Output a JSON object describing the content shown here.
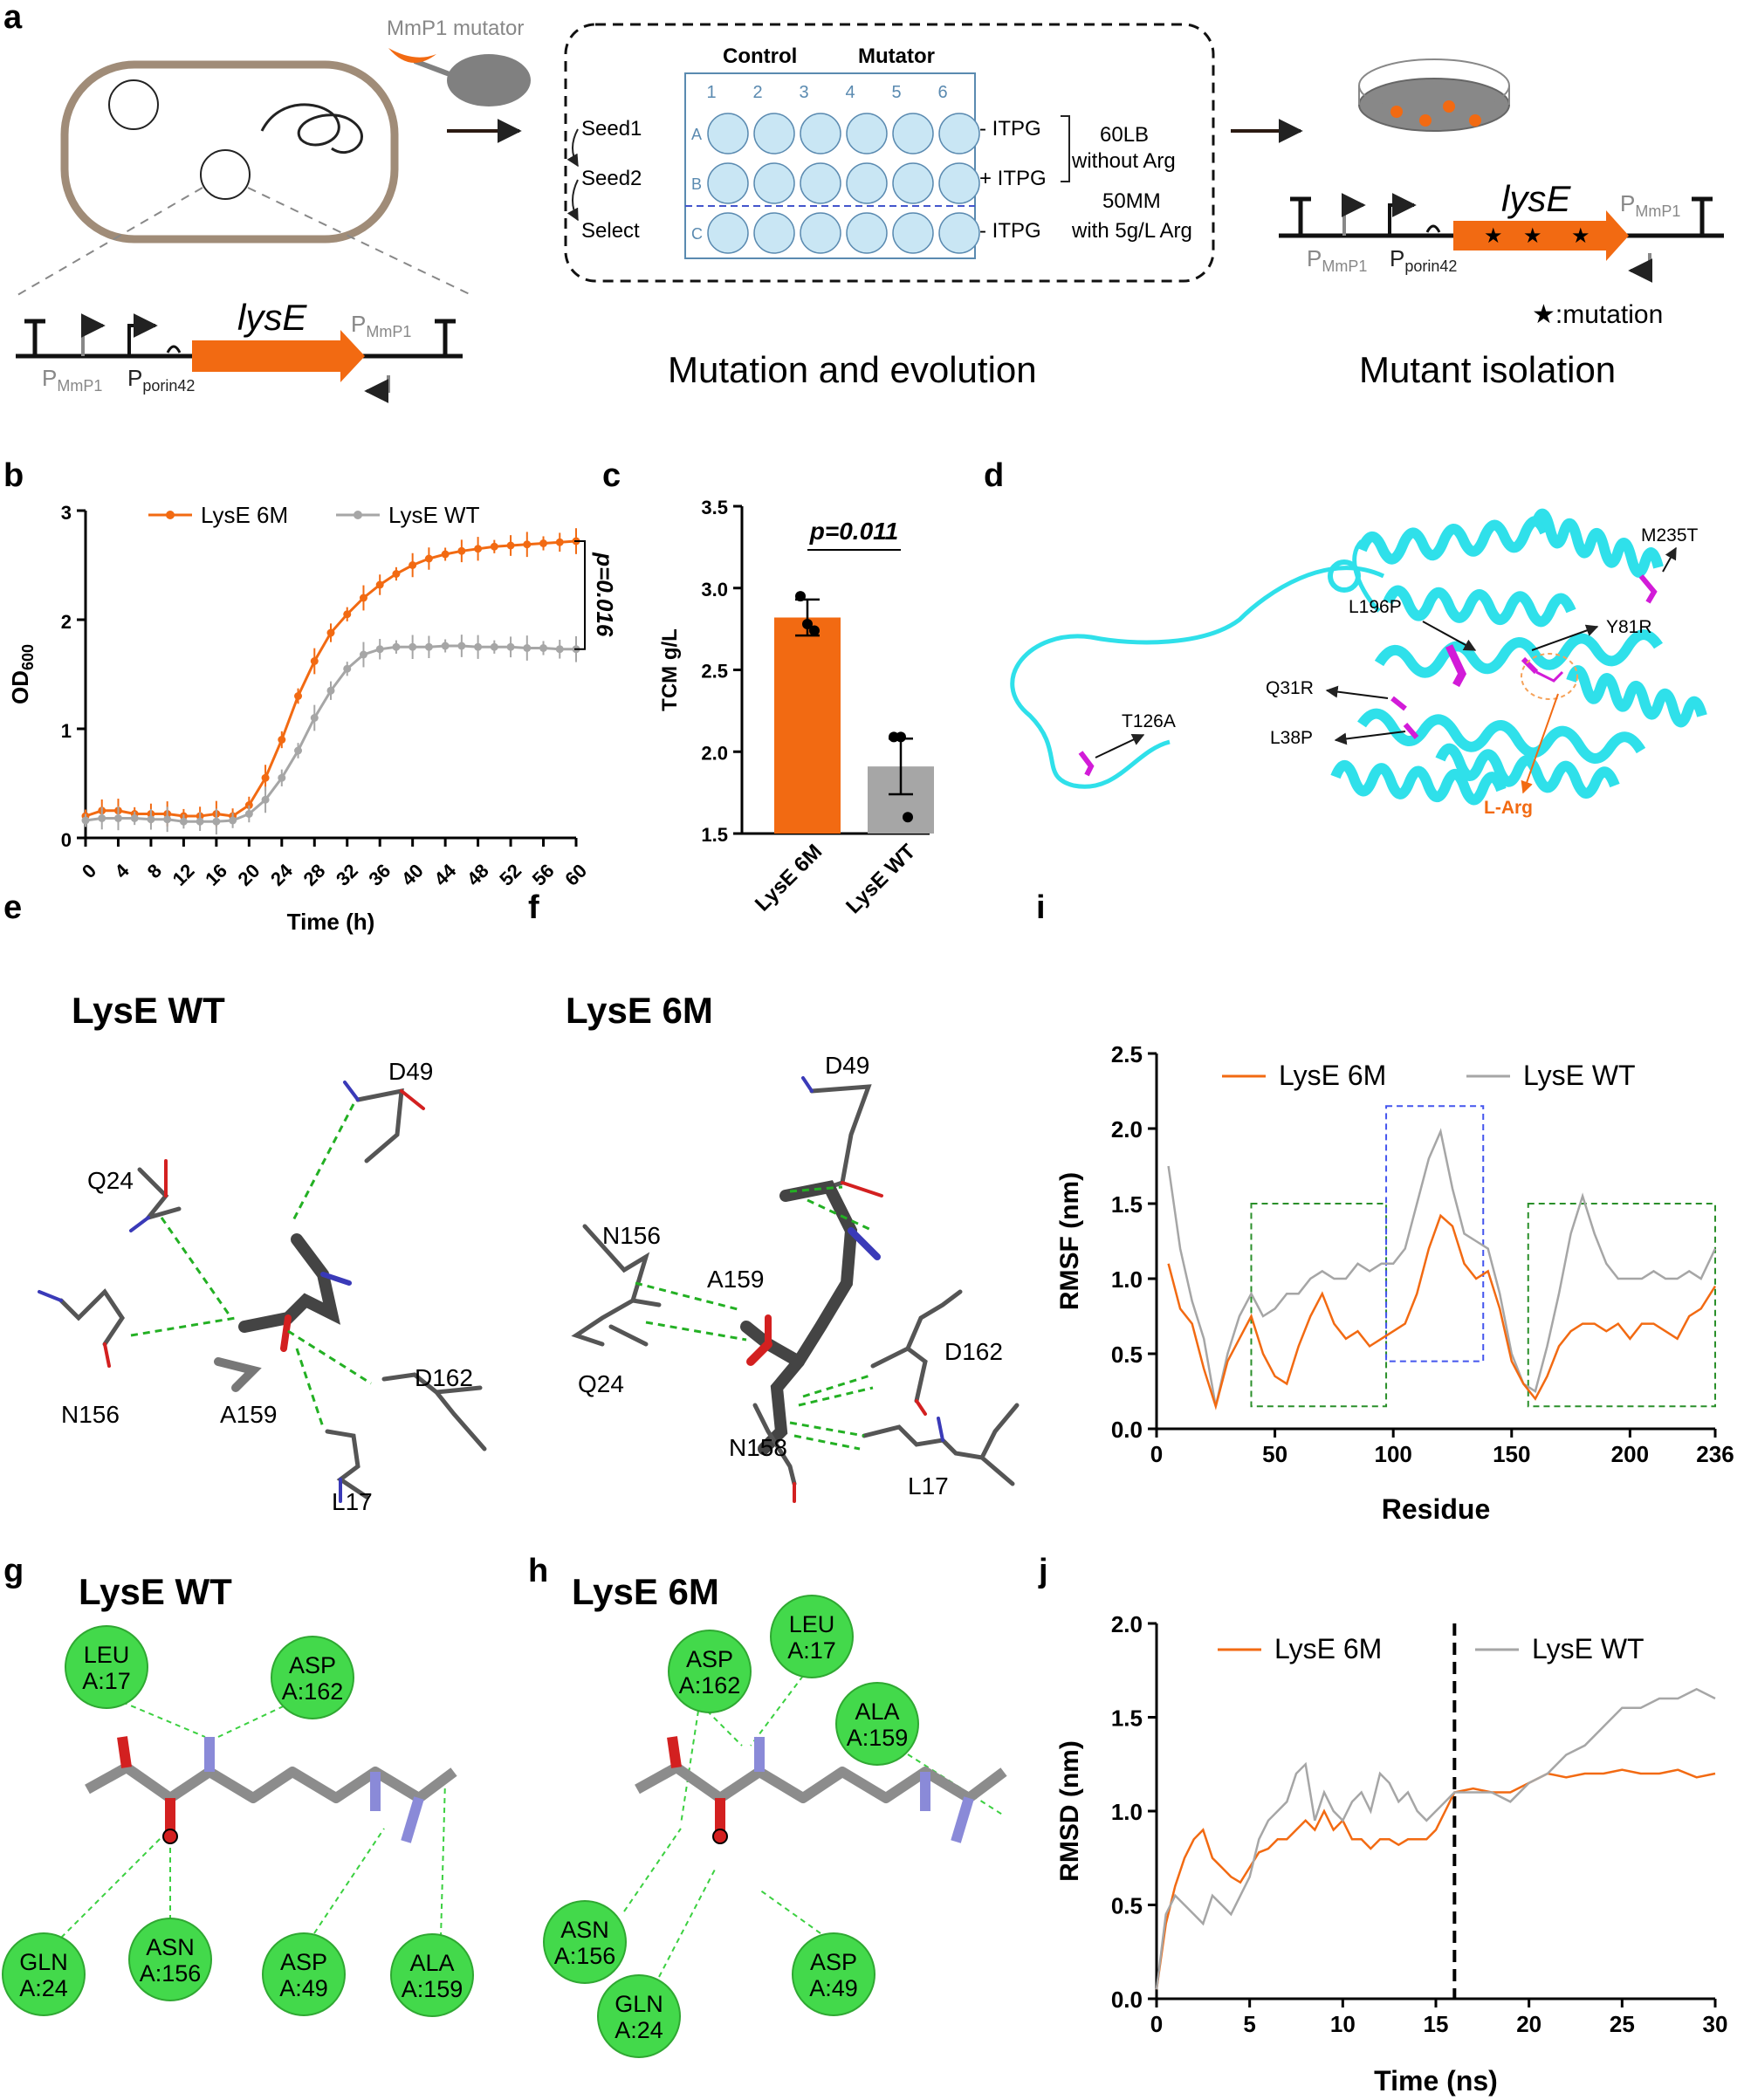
{
  "panels": {
    "a": {
      "letter": "a",
      "mutator_label": "MmP1 mutator",
      "cassette": {
        "gene": "lysE",
        "p1_main": "P",
        "p1_sub": "MmP1",
        "p2_main": "P",
        "p2_sub": "porin42",
        "p3_main": "P",
        "p3_sub": "MmP1"
      },
      "plate": {
        "control": "Control",
        "mutator": "Mutator",
        "cols": [
          "1",
          "2",
          "3",
          "4",
          "5",
          "6"
        ],
        "rows": [
          "A",
          "B",
          "C"
        ],
        "left_labels": [
          "Seed1",
          "Seed2",
          "Select"
        ],
        "right_labels": [
          "- ITPG",
          "+ ITPG",
          "- ITPG"
        ],
        "media_1a": "60LB",
        "media_1b": "without Arg",
        "media_2a": "50MM",
        "media_2b": "with 5g/L Arg"
      },
      "caption_mid": "Mutation and evolution",
      "caption_right": "Mutant isolation",
      "mutation_legend": "★:mutation"
    },
    "b": {
      "letter": "b",
      "pvalue": "p=0.016"
    },
    "c": {
      "letter": "c",
      "pvalue": "p=0.011"
    },
    "d": {
      "letter": "d",
      "labels": [
        "M235T",
        "L196P",
        "Y81R",
        "Q31R",
        "L38P",
        "T126A"
      ],
      "ligand": "L-Arg"
    },
    "e": {
      "letter": "e",
      "title": "LysE WT",
      "residues": [
        "D49",
        "Q24",
        "N156",
        "A159",
        "D162",
        "L17"
      ]
    },
    "f": {
      "letter": "f",
      "title": "LysE 6M",
      "residues": [
        "D49",
        "N156",
        "A159",
        "Q24",
        "D162",
        "N158",
        "L17"
      ]
    },
    "g": {
      "letter": "g",
      "title": "LysE WT",
      "residues": [
        {
          "l1": "LEU",
          "l2": "A:17"
        },
        {
          "l1": "ASP",
          "l2": "A:162"
        },
        {
          "l1": "GLN",
          "l2": "A:24"
        },
        {
          "l1": "ASN",
          "l2": "A:156"
        },
        {
          "l1": "ASP",
          "l2": "A:49"
        },
        {
          "l1": "ALA",
          "l2": "A:159"
        }
      ]
    },
    "h": {
      "letter": "h",
      "title": "LysE 6M",
      "residues": [
        {
          "l1": "LEU",
          "l2": "A:17"
        },
        {
          "l1": "ASP",
          "l2": "A:162"
        },
        {
          "l1": "ALA",
          "l2": "A:159"
        },
        {
          "l1": "ASN",
          "l2": "A:156"
        },
        {
          "l1": "GLN",
          "l2": "A:24"
        },
        {
          "l1": "ASP",
          "l2": "A:49"
        }
      ]
    },
    "i": {
      "letter": "i"
    },
    "j": {
      "letter": "j"
    }
  },
  "colors": {
    "orange": "#f26a12",
    "gray": "#a6a6a6",
    "cyan": "#2fe0ea",
    "magenta": "#d21bd8",
    "green": "#43d94b",
    "plate_fill": "#c9e6f4"
  },
  "chart_data": [
    {
      "id": "b",
      "type": "line",
      "xlabel": "Time (h)",
      "ylabel": "OD600",
      "xlim": [
        0,
        60
      ],
      "ylim": [
        0,
        3
      ],
      "xticks": [
        0,
        4,
        8,
        12,
        16,
        20,
        24,
        28,
        32,
        36,
        40,
        44,
        48,
        52,
        56,
        60
      ],
      "yticks": [
        0,
        1,
        2,
        3
      ],
      "x": [
        0,
        2,
        4,
        6,
        8,
        10,
        12,
        14,
        16,
        18,
        20,
        22,
        24,
        26,
        28,
        30,
        32,
        34,
        36,
        38,
        40,
        42,
        44,
        46,
        48,
        50,
        52,
        54,
        56,
        58,
        60
      ],
      "series": [
        {
          "name": "LysE 6M",
          "values": [
            0.2,
            0.25,
            0.25,
            0.22,
            0.22,
            0.22,
            0.2,
            0.2,
            0.22,
            0.2,
            0.3,
            0.55,
            0.9,
            1.3,
            1.62,
            1.88,
            2.05,
            2.2,
            2.32,
            2.42,
            2.5,
            2.56,
            2.6,
            2.63,
            2.65,
            2.67,
            2.68,
            2.69,
            2.7,
            2.71,
            2.72
          ]
        },
        {
          "name": "LysE WT",
          "values": [
            0.16,
            0.18,
            0.18,
            0.18,
            0.17,
            0.17,
            0.15,
            0.15,
            0.15,
            0.16,
            0.22,
            0.35,
            0.55,
            0.8,
            1.1,
            1.35,
            1.55,
            1.68,
            1.73,
            1.75,
            1.75,
            1.75,
            1.76,
            1.76,
            1.75,
            1.75,
            1.75,
            1.74,
            1.74,
            1.73,
            1.73
          ]
        }
      ],
      "legend": "top"
    },
    {
      "id": "c",
      "type": "bar",
      "categories": [
        "LysE 6M",
        "LysE WT"
      ],
      "values": [
        2.82,
        1.91
      ],
      "errors": [
        0.11,
        0.17
      ],
      "points": [
        [
          2.95,
          2.78,
          2.74
        ],
        [
          2.09,
          2.09,
          1.6
        ]
      ],
      "ylabel": "TCM g/L",
      "ylim": [
        1.5,
        3.5
      ],
      "yticks": [
        1.5,
        2.0,
        2.5,
        3.0,
        3.5
      ]
    },
    {
      "id": "i",
      "type": "line",
      "xlabel": "Residue",
      "ylabel": "RMSF (nm)",
      "xlim": [
        0,
        236
      ],
      "ylim": [
        0,
        2.5
      ],
      "xticks": [
        0,
        50,
        100,
        150,
        200,
        236
      ],
      "yticks": [
        0.0,
        0.5,
        1.0,
        1.5,
        2.0,
        2.5
      ],
      "x": [
        5,
        10,
        15,
        20,
        25,
        30,
        35,
        40,
        45,
        50,
        55,
        60,
        65,
        70,
        75,
        80,
        85,
        90,
        95,
        100,
        105,
        110,
        115,
        120,
        125,
        130,
        135,
        140,
        145,
        150,
        155,
        160,
        165,
        170,
        175,
        180,
        185,
        190,
        195,
        200,
        205,
        210,
        215,
        220,
        225,
        230,
        236
      ],
      "series": [
        {
          "name": "LysE 6M",
          "values": [
            1.1,
            0.8,
            0.7,
            0.4,
            0.15,
            0.45,
            0.6,
            0.75,
            0.5,
            0.35,
            0.3,
            0.55,
            0.75,
            0.9,
            0.7,
            0.6,
            0.65,
            0.55,
            0.6,
            0.65,
            0.7,
            0.9,
            1.2,
            1.42,
            1.35,
            1.1,
            1.0,
            1.05,
            0.8,
            0.45,
            0.3,
            0.2,
            0.35,
            0.55,
            0.65,
            0.7,
            0.7,
            0.65,
            0.7,
            0.6,
            0.7,
            0.7,
            0.65,
            0.6,
            0.75,
            0.8,
            0.95
          ]
        },
        {
          "name": "LysE WT",
          "values": [
            1.75,
            1.2,
            0.85,
            0.6,
            0.15,
            0.5,
            0.75,
            0.9,
            0.75,
            0.8,
            0.9,
            0.9,
            1.0,
            1.05,
            1.0,
            1.0,
            1.1,
            1.05,
            1.1,
            1.1,
            1.2,
            1.5,
            1.8,
            1.98,
            1.6,
            1.3,
            1.25,
            1.2,
            0.9,
            0.5,
            0.3,
            0.25,
            0.55,
            0.9,
            1.3,
            1.55,
            1.3,
            1.1,
            1.0,
            1.0,
            1.0,
            1.05,
            1.0,
            1.0,
            1.05,
            1.0,
            1.2
          ]
        }
      ],
      "legend": "top"
    },
    {
      "id": "j",
      "type": "line",
      "xlabel": "Time (ns)",
      "ylabel": "RMSD (nm)",
      "xlim": [
        0,
        30
      ],
      "ylim": [
        0,
        2.0
      ],
      "xticks": [
        0,
        5,
        10,
        15,
        20,
        25,
        30
      ],
      "yticks": [
        0.0,
        0.5,
        1.0,
        1.5,
        2.0
      ],
      "x": [
        0,
        0.5,
        1,
        1.5,
        2,
        2.5,
        3,
        3.5,
        4,
        4.5,
        5,
        5.5,
        6,
        6.5,
        7,
        7.5,
        8,
        8.5,
        9,
        9.5,
        10,
        10.5,
        11,
        11.5,
        12,
        12.5,
        13,
        13.5,
        14,
        14.5,
        15,
        15.5,
        16,
        17,
        18,
        19,
        20,
        21,
        22,
        23,
        24,
        25,
        26,
        27,
        28,
        29,
        30
      ],
      "series": [
        {
          "name": "LysE 6M",
          "values": [
            0.05,
            0.4,
            0.6,
            0.75,
            0.85,
            0.9,
            0.75,
            0.7,
            0.65,
            0.62,
            0.7,
            0.78,
            0.8,
            0.85,
            0.85,
            0.9,
            0.95,
            0.9,
            1.0,
            0.9,
            0.95,
            0.85,
            0.85,
            0.8,
            0.85,
            0.85,
            0.82,
            0.85,
            0.85,
            0.85,
            0.9,
            1.0,
            1.1,
            1.12,
            1.1,
            1.1,
            1.15,
            1.2,
            1.18,
            1.2,
            1.2,
            1.22,
            1.2,
            1.2,
            1.22,
            1.18,
            1.2
          ]
        },
        {
          "name": "LysE WT",
          "values": [
            0.05,
            0.45,
            0.55,
            0.5,
            0.45,
            0.4,
            0.55,
            0.5,
            0.45,
            0.55,
            0.65,
            0.85,
            0.95,
            1.0,
            1.05,
            1.2,
            1.25,
            0.95,
            1.1,
            1.0,
            0.95,
            1.05,
            1.1,
            1.0,
            1.2,
            1.15,
            1.05,
            1.1,
            1.0,
            0.95,
            1.0,
            1.05,
            1.1,
            1.1,
            1.1,
            1.05,
            1.15,
            1.2,
            1.3,
            1.35,
            1.45,
            1.55,
            1.55,
            1.6,
            1.6,
            1.65,
            1.6
          ]
        }
      ],
      "legend": "top",
      "vline_at": 16
    }
  ]
}
